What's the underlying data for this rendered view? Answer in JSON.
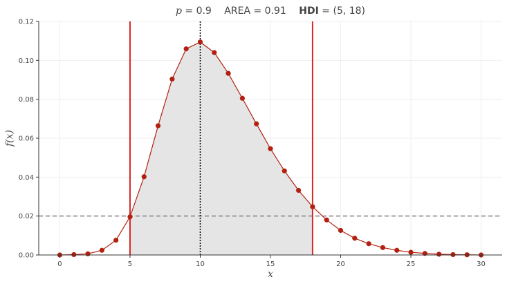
{
  "chart_data": {
    "type": "line",
    "title": {
      "p_label": "p",
      "p_value": "= 0.9",
      "area_label": "AREA",
      "area_value": "= 0.91",
      "hdi_label": "HDI",
      "hdi_value": "= (5, 18)"
    },
    "xlabel": "x",
    "ylabel": "f(x)",
    "xlim": [
      -1.5,
      31.5
    ],
    "ylim": [
      0,
      0.12
    ],
    "xticks": [
      0,
      5,
      10,
      15,
      20,
      25,
      30
    ],
    "xtick_labels": [
      "0",
      "5",
      "10",
      "15",
      "20",
      "25",
      "30"
    ],
    "yticks": [
      0,
      0.02,
      0.04,
      0.06,
      0.08,
      0.1,
      0.12
    ],
    "ytick_labels": [
      "0.00",
      "0.02",
      "0.04",
      "0.06",
      "0.08",
      "0.10",
      "0.12"
    ],
    "grid": true,
    "series": [
      {
        "x": [
          0,
          1,
          2,
          3,
          4,
          5,
          6,
          7,
          8,
          9,
          10,
          11,
          12,
          13,
          14,
          15,
          16,
          17,
          18,
          19,
          20,
          21,
          22,
          23,
          24,
          25,
          26,
          27,
          28,
          29,
          30
        ],
        "y": [
          0.0,
          0.0002,
          0.0006,
          0.0024,
          0.0076,
          0.0196,
          0.0402,
          0.0664,
          0.0904,
          0.1059,
          0.1094,
          0.104,
          0.0933,
          0.0805,
          0.0674,
          0.0546,
          0.0432,
          0.0332,
          0.0248,
          0.018,
          0.0126,
          0.0086,
          0.0058,
          0.0038,
          0.0024,
          0.0014,
          0.0008,
          0.0004,
          0.0002,
          0.0001,
          0.0
        ],
        "color": "#b22010"
      }
    ],
    "hdi_interval": [
      5,
      18
    ],
    "mode_line": 10,
    "threshold_line": 0.02,
    "colors": {
      "series": "#b22010",
      "hdi_lines": "#d62728",
      "fill": "#e5e5e5",
      "threshold": "#808080",
      "mode": "#000000",
      "grid": "#eeeeee",
      "axis": "#333333"
    }
  }
}
